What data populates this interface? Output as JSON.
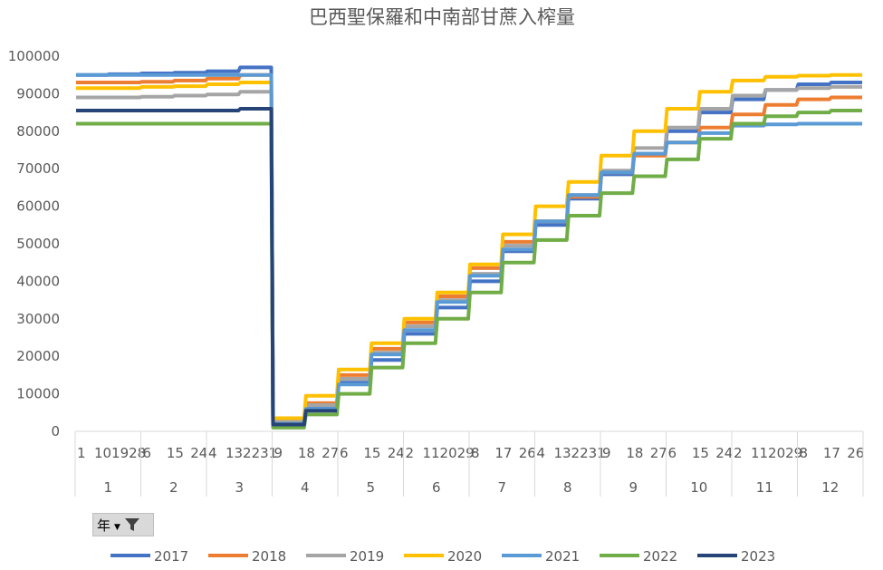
{
  "chart_data": {
    "type": "line",
    "title": "巴西聖保羅和中南部甘蔗入榨量",
    "ylim": [
      0,
      100000
    ],
    "yticks": [
      "0",
      "10000",
      "20000",
      "30000",
      "40000",
      "50000",
      "60000",
      "70000",
      "80000",
      "90000",
      "100000"
    ],
    "months": [
      {
        "label": "1",
        "days": [
          "1",
          "10",
          "19",
          "28"
        ]
      },
      {
        "label": "2",
        "days": [
          "6",
          "15",
          "24"
        ]
      },
      {
        "label": "3",
        "days": [
          "4",
          "13",
          "22",
          "31"
        ]
      },
      {
        "label": "4",
        "days": [
          "9",
          "18",
          "27"
        ]
      },
      {
        "label": "5",
        "days": [
          "6",
          "15",
          "24"
        ]
      },
      {
        "label": "6",
        "days": [
          "2",
          "11",
          "20",
          "29"
        ]
      },
      {
        "label": "7",
        "days": [
          "8",
          "17",
          "26"
        ]
      },
      {
        "label": "8",
        "days": [
          "4",
          "13",
          "22",
          "31"
        ]
      },
      {
        "label": "9",
        "days": [
          "9",
          "18",
          "27"
        ]
      },
      {
        "label": "10",
        "days": [
          "6",
          "15",
          "24"
        ]
      },
      {
        "label": "11",
        "days": [
          "2",
          "11",
          "20",
          "29"
        ]
      },
      {
        "label": "12",
        "days": [
          "8",
          "17",
          "26"
        ]
      }
    ],
    "x_unit": "half-month period (Jan H1 … Dec H2)",
    "series": [
      {
        "name": "2017",
        "color": "#4472c4",
        "values": [
          95000,
          95200,
          95400,
          95600,
          96000,
          97000,
          2500,
          6500,
          13000,
          19000,
          26000,
          33000,
          40000,
          48000,
          55000,
          62000,
          68500,
          74000,
          80000,
          85000,
          88500,
          91000,
          92500,
          93000
        ]
      },
      {
        "name": "2018",
        "color": "#ed7d31",
        "values": [
          93000,
          93000,
          93200,
          93500,
          94000,
          95000,
          3000,
          7500,
          15000,
          22000,
          29000,
          36000,
          43500,
          50500,
          56000,
          62500,
          69000,
          73500,
          77000,
          81000,
          84500,
          87000,
          88500,
          89000
        ]
      },
      {
        "name": "2019",
        "color": "#a5a5a5",
        "values": [
          89000,
          89000,
          89200,
          89500,
          89800,
          90500,
          2800,
          7000,
          14000,
          21000,
          28000,
          35000,
          42000,
          49500,
          56000,
          63000,
          69500,
          75500,
          81000,
          86000,
          89500,
          91000,
          91500,
          91800
        ]
      },
      {
        "name": "2020",
        "color": "#ffc000",
        "values": [
          91500,
          91500,
          91800,
          92000,
          92500,
          93000,
          3500,
          9500,
          16500,
          23500,
          30000,
          37000,
          44500,
          52500,
          60000,
          66500,
          73500,
          80000,
          86000,
          90500,
          93500,
          94500,
          94800,
          95000
        ]
      },
      {
        "name": "2021",
        "color": "#5b9bd5",
        "values": [
          95000,
          95000,
          95000,
          95000,
          95000,
          95000,
          2000,
          6000,
          12500,
          20500,
          27000,
          34500,
          41500,
          48500,
          56000,
          63000,
          69000,
          74000,
          77000,
          79500,
          81500,
          81800,
          82000,
          82000
        ]
      },
      {
        "name": "2022",
        "color": "#70ad47",
        "values": [
          82000,
          82000,
          82000,
          82000,
          82000,
          82000,
          1000,
          4500,
          10000,
          17000,
          23500,
          30000,
          37000,
          45000,
          51000,
          57500,
          63500,
          68000,
          72500,
          78000,
          82000,
          84000,
          85000,
          85500
        ]
      },
      {
        "name": "2023",
        "color": "#264478",
        "values": [
          85500,
          85500,
          85500,
          85500,
          85500,
          86000,
          1800,
          5500
        ]
      }
    ]
  },
  "filter": {
    "label": "年"
  }
}
